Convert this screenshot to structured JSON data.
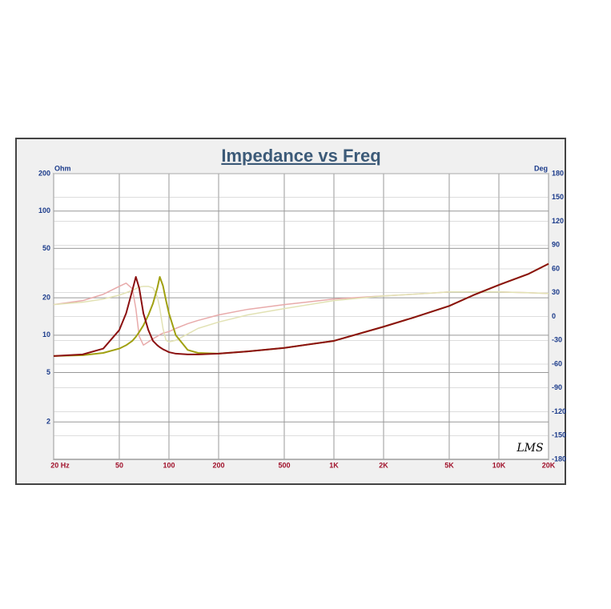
{
  "chart_data": {
    "type": "line",
    "title": "Impedance vs Freq",
    "y_label": "Ohm",
    "y2_label": "Deg",
    "logo": "LMS",
    "xscale": "log",
    "yscale": "log",
    "grid": true,
    "xlim": [
      20,
      20000
    ],
    "ylim": [
      1,
      200
    ],
    "y2lim": [
      -180,
      180
    ],
    "xticks": [
      {
        "value": 20,
        "label": "20 Hz"
      },
      50,
      100,
      200,
      500,
      {
        "value": 1000,
        "label": "1K"
      },
      {
        "value": 2000,
        "label": "2K"
      },
      {
        "value": 5000,
        "label": "5K"
      },
      {
        "value": 10000,
        "label": "10K"
      },
      {
        "value": 20000,
        "label": "20K"
      }
    ],
    "yticks": [
      2,
      5,
      10,
      20,
      50,
      100,
      200
    ],
    "y2ticks": [
      -180,
      -150,
      -120,
      -90,
      -60,
      -30,
      0,
      30,
      60,
      90,
      120,
      150,
      180
    ],
    "x": [
      20,
      30,
      40,
      50,
      55,
      60,
      63,
      66,
      70,
      75,
      80,
      85,
      88,
      92,
      96,
      100,
      110,
      130,
      150,
      200,
      300,
      500,
      1000,
      2000,
      3000,
      5000,
      7000,
      10000,
      15000,
      20000
    ],
    "series": [
      {
        "color": "#e8aaaa",
        "axis": "y2",
        "values": [
          15,
          20,
          28,
          38,
          42,
          35,
          10,
          -25,
          -36,
          -32,
          -28,
          -25,
          -23,
          -21,
          -20,
          -19,
          -15,
          -9,
          -5,
          2,
          9,
          15,
          22,
          26,
          28,
          31,
          31,
          31,
          30,
          29
        ]
      },
      {
        "color": "#e2e2b4",
        "axis": "y2",
        "values": [
          15,
          18,
          22,
          27,
          30,
          33,
          35,
          37,
          38,
          38,
          36,
          25,
          10,
          -15,
          -30,
          -32,
          -30,
          -22,
          -15,
          -7,
          2,
          10,
          20,
          26,
          28,
          31,
          31,
          31,
          30,
          29
        ]
      },
      {
        "color": "#a0a010",
        "values": [
          6.8,
          6.9,
          7.2,
          7.8,
          8.3,
          9,
          9.7,
          10.6,
          12,
          14.5,
          18,
          24,
          29.5,
          25,
          19,
          15,
          10,
          7.6,
          7.2,
          7.1,
          7.4,
          7.9,
          9,
          11.7,
          13.8,
          17.2,
          21,
          25.4,
          31,
          37.6
        ]
      },
      {
        "color": "#8b1010",
        "values": [
          6.8,
          7.0,
          7.8,
          11,
          15,
          23,
          29.5,
          24,
          15,
          11,
          9,
          8.3,
          8,
          7.7,
          7.5,
          7.3,
          7.1,
          7.0,
          7.0,
          7.1,
          7.4,
          7.9,
          9,
          11.7,
          13.8,
          17.2,
          21,
          25.4,
          31,
          37.6
        ]
      }
    ]
  }
}
